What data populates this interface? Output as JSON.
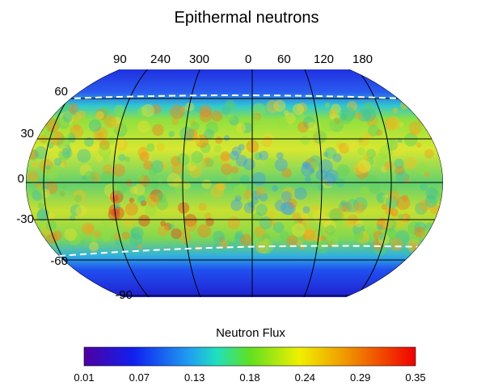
{
  "title": "Epithermal neutrons",
  "longitude_labels": [
    "90",
    "240",
    "300",
    "0",
    "60",
    "120",
    "180"
  ],
  "latitude_labels": [
    "60",
    "30",
    "0",
    "-30",
    "-60",
    "-90"
  ],
  "colorbar": {
    "title": "Neutron Flux",
    "ticks": [
      "0.01",
      "0.07",
      "0.13",
      "0.18",
      "0.24",
      "0.29",
      "0.35"
    ]
  }
}
